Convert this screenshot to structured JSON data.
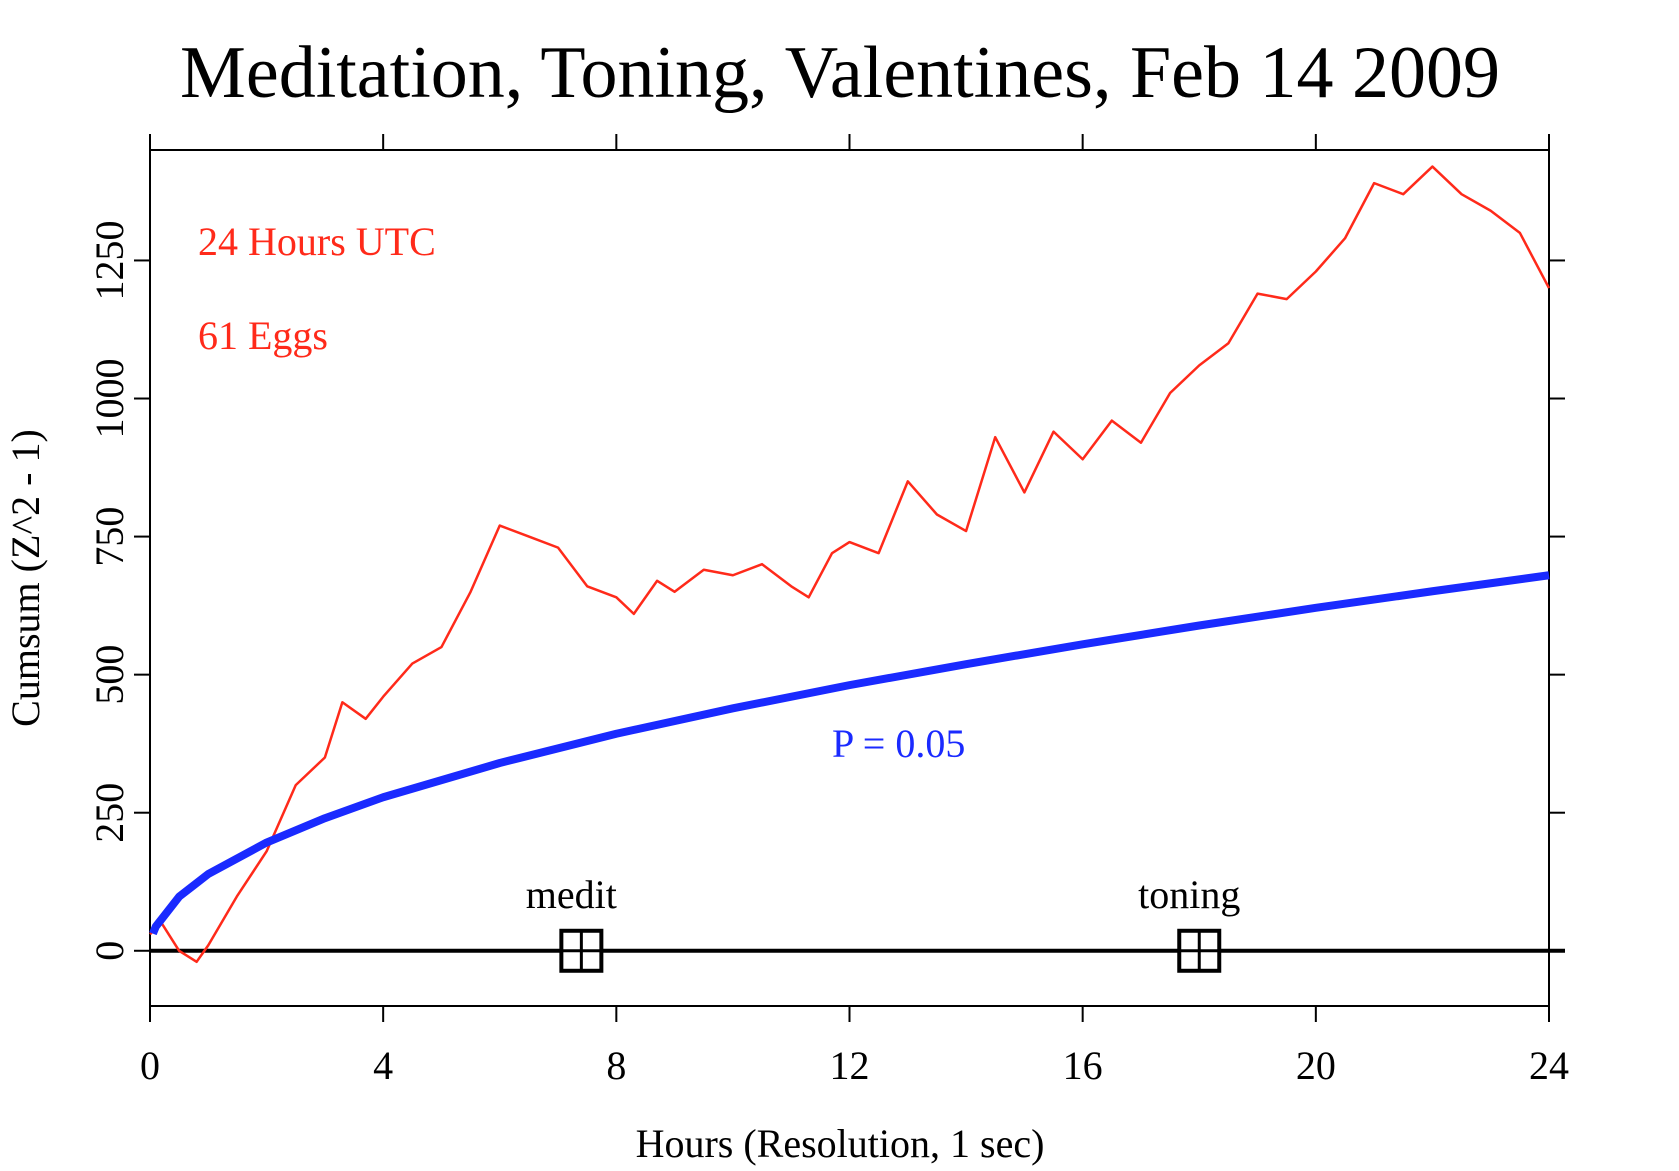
{
  "chart_data": {
    "type": "line",
    "title": "Meditation, Toning, Valentines, Feb 14 2009",
    "xlabel": "Hours (Resolution, 1 sec)",
    "ylabel": "Cumsum (Z^2 - 1)",
    "annotations": [
      "24 Hours UTC",
      "61 Eggs"
    ],
    "xlim": [
      0,
      24
    ],
    "xticks": [
      0,
      4,
      8,
      12,
      16,
      20,
      24
    ],
    "ylim": [
      -100,
      1450
    ],
    "yticks": [
      0,
      250,
      500,
      750,
      1000,
      1250
    ],
    "hline": 0,
    "series": [
      {
        "color": "#ff2a1a",
        "x": [
          0,
          0.2,
          0.5,
          0.8,
          1,
          1.5,
          2,
          2.5,
          3,
          3.3,
          3.7,
          4,
          4.5,
          5,
          5.5,
          6,
          6.5,
          7,
          7.5,
          8,
          8.3,
          8.7,
          9,
          9.5,
          10,
          10.5,
          11,
          11.3,
          11.7,
          12,
          12.5,
          13,
          13.5,
          14,
          14.5,
          15,
          15.5,
          16,
          16.5,
          17,
          17.5,
          18,
          18.5,
          19,
          19.5,
          20,
          20.5,
          21,
          21.5,
          22,
          22.5,
          23,
          23.5,
          24
        ],
        "values": [
          30,
          50,
          0,
          -20,
          10,
          100,
          180,
          300,
          350,
          450,
          420,
          460,
          520,
          550,
          650,
          770,
          750,
          730,
          660,
          640,
          610,
          670,
          650,
          690,
          680,
          700,
          660,
          640,
          720,
          740,
          720,
          850,
          790,
          760,
          930,
          830,
          940,
          890,
          960,
          920,
          1010,
          1060,
          1100,
          1190,
          1180,
          1230,
          1290,
          1390,
          1370,
          1420,
          1370,
          1340,
          1300,
          1200
        ]
      },
      {
        "name": "P = 0.05",
        "color": "#1a2aff",
        "x": [
          0.05,
          0.1,
          0.5,
          1,
          2,
          3,
          4,
          6,
          8,
          10,
          12,
          14,
          16,
          18,
          20,
          22,
          24
        ],
        "values": [
          31,
          44,
          98,
          139,
          196,
          240,
          278,
          340,
          393,
          439,
          481,
          519,
          555,
          589,
          621,
          651,
          680
        ]
      }
    ],
    "events": [
      {
        "label": "medit",
        "x": 7.4
      },
      {
        "label": "toning",
        "x": 18
      }
    ]
  }
}
